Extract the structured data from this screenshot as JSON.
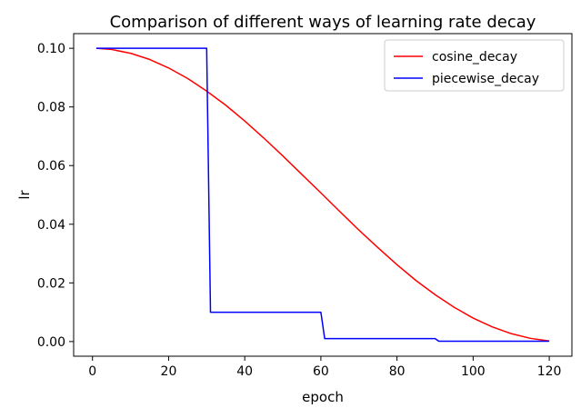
{
  "chart_data": {
    "type": "line",
    "title": "Comparison of different ways of learning rate decay",
    "xlabel": "epoch",
    "ylabel": "lr",
    "xlim": [
      -4.95,
      125.95
    ],
    "ylim": [
      -0.005,
      0.105
    ],
    "xticks": [
      0,
      20,
      40,
      60,
      80,
      100,
      120
    ],
    "yticks": [
      0.0,
      0.02,
      0.04,
      0.06,
      0.08,
      0.1
    ],
    "xtick_labels": [
      "0",
      "20",
      "40",
      "60",
      "80",
      "100",
      "120"
    ],
    "ytick_labels": [
      "0.00",
      "0.02",
      "0.04",
      "0.06",
      "0.08",
      "0.10"
    ],
    "grid": false,
    "legend_position": "upper right",
    "series": [
      {
        "name": "cosine_decay",
        "color": "#ff0000",
        "x": [
          1,
          5,
          10,
          15,
          20,
          25,
          30,
          35,
          40,
          45,
          50,
          55,
          60,
          65,
          70,
          75,
          80,
          85,
          90,
          95,
          100,
          105,
          110,
          115,
          120
        ],
        "values": [
          0.1,
          0.0996,
          0.0983,
          0.0962,
          0.0933,
          0.0897,
          0.0854,
          0.0806,
          0.0752,
          0.0694,
          0.0633,
          0.057,
          0.0507,
          0.0443,
          0.038,
          0.032,
          0.0262,
          0.0208,
          0.016,
          0.0117,
          0.008,
          0.005,
          0.0027,
          0.0011,
          0.0002
        ]
      },
      {
        "name": "piecewise_decay",
        "color": "#0000ff",
        "x": [
          1,
          30,
          31,
          60,
          61,
          90,
          91,
          120
        ],
        "values": [
          0.1,
          0.1,
          0.01,
          0.01,
          0.001,
          0.001,
          0.0001,
          0.0001
        ]
      }
    ]
  }
}
